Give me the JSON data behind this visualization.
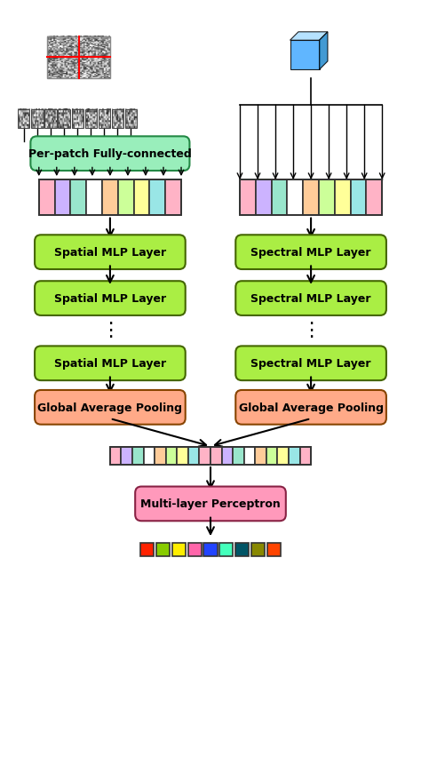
{
  "fig_width": 4.74,
  "fig_height": 8.62,
  "bg_color": "#ffffff",
  "bar_colors_top": [
    "#ffb3c6",
    "#ccb3ff",
    "#99e6cc",
    "#ffffff",
    "#ffcc99",
    "#ccff99",
    "#ffff99",
    "#99e6e6",
    "#ffb3c6"
  ],
  "bar_colors_concat": [
    "#ffb3c6",
    "#ccb3ff",
    "#99e6cc",
    "#ffffff",
    "#ffcc99",
    "#ccff99",
    "#ffff99",
    "#99e6e6",
    "#ffb3c6",
    "#ffb3c6",
    "#ccb3ff",
    "#99e6cc",
    "#ffffff",
    "#ffcc99",
    "#ccff99",
    "#ffff99",
    "#99e6e6",
    "#ffb3c6"
  ],
  "output_colors": [
    "#ff2200",
    "#88cc00",
    "#ffee00",
    "#ff66aa",
    "#2244ff",
    "#44ffbb",
    "#005566",
    "#888800",
    "#ff4400"
  ],
  "spatial_mlp_color": "#aaee44",
  "spectral_mlp_color": "#aaee44",
  "gap_color": "#ffaa88",
  "mlp_color": "#ff99bb",
  "fc_color": "#99eebb",
  "arrow_color": "#111111",
  "text_color": "#111111",
  "spatial_label": "Spatial MLP Layer",
  "spectral_label": "Spectral MLP Layer",
  "gap_label": "Global Average Pooling",
  "mlp_label": "Multi-layer Perceptron",
  "fc_label": "Per-patch Fully-connected"
}
